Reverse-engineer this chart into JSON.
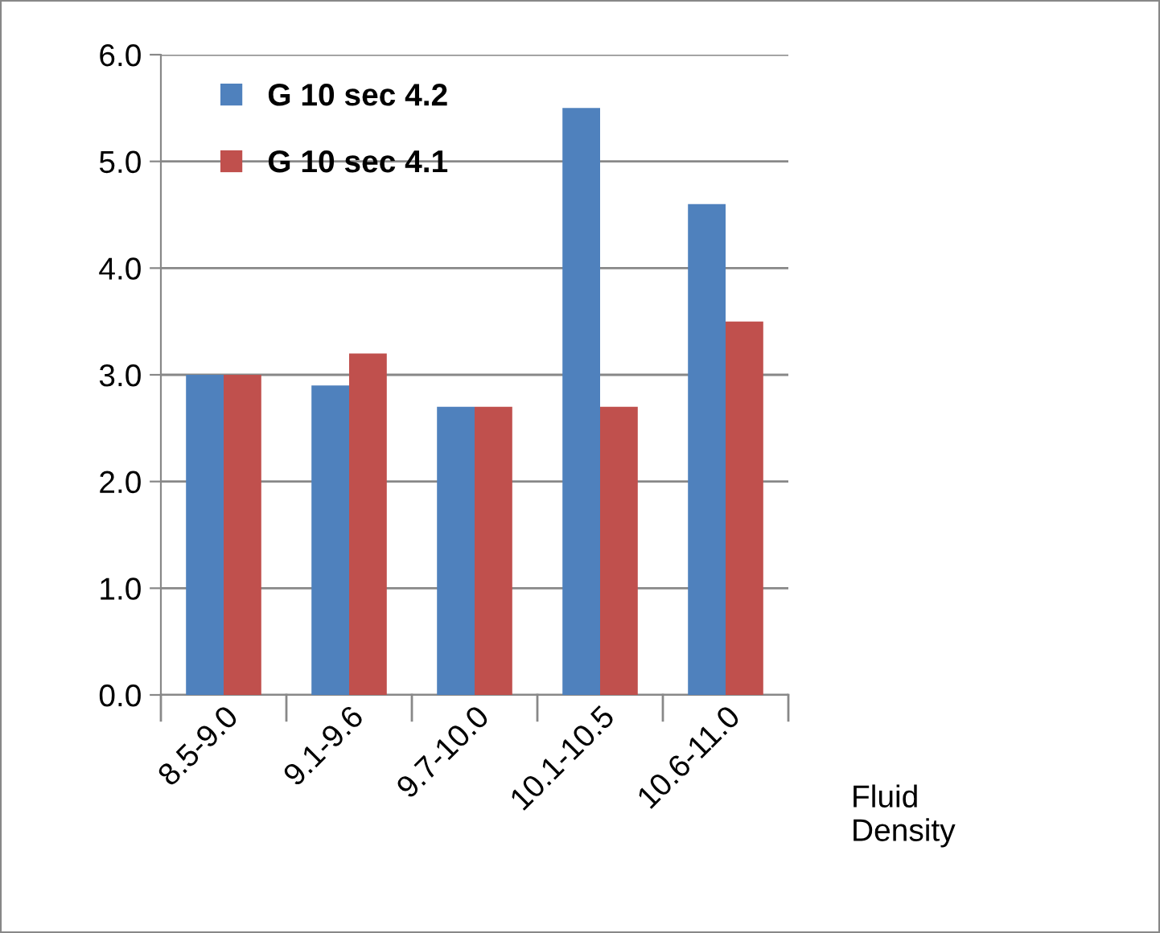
{
  "chart_data": {
    "type": "bar",
    "xlabel": "Fluid Density",
    "categories": [
      "8.5-9.0",
      "9.1-9.6",
      "9.7-10.0",
      "10.1-10.5",
      "10.6-11.0"
    ],
    "series": [
      {
        "name": "G 10 sec 4.2",
        "color": "#4f81bd",
        "values": [
          3.0,
          2.9,
          2.7,
          5.5,
          4.6
        ]
      },
      {
        "name": "G 10 sec 4.1",
        "color": "#c0504d",
        "values": [
          3.0,
          3.2,
          2.7,
          2.7,
          3.5
        ]
      }
    ],
    "ylim": [
      0,
      6
    ],
    "yticks": [
      {
        "value": 0,
        "label": "0.0"
      },
      {
        "value": 1,
        "label": "1.0"
      },
      {
        "value": 2,
        "label": "2.0"
      },
      {
        "value": 3,
        "label": "3.0"
      },
      {
        "value": 4,
        "label": "4.0"
      },
      {
        "value": 5,
        "label": "5.0"
      },
      {
        "value": 6,
        "label": "6.0"
      }
    ],
    "grid": "y",
    "legend": "top left"
  }
}
